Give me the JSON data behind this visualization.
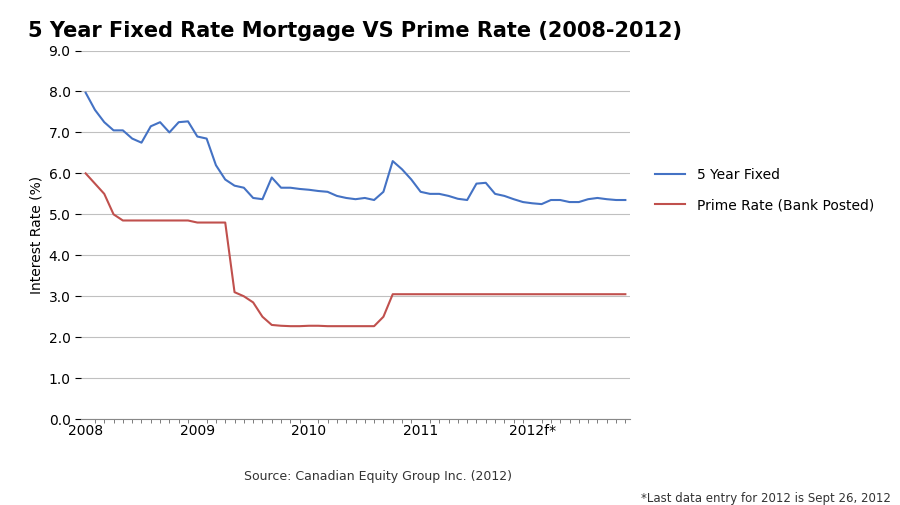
{
  "title": "5 Year Fixed Rate Mortgage VS Prime Rate (2008-2012)",
  "ylabel": "Interest Rate (%)",
  "source_text": "Source: Canadian Equity Group Inc. (2012)",
  "footnote_text": "*Last data entry for 2012 is Sept 26, 2012",
  "ylim": [
    0.0,
    9.0
  ],
  "yticks": [
    0.0,
    1.0,
    2.0,
    3.0,
    4.0,
    5.0,
    6.0,
    7.0,
    8.0,
    9.0
  ],
  "fixed_rate_x": [
    0,
    1,
    2,
    3,
    4,
    5,
    6,
    7,
    8,
    9,
    10,
    11,
    12,
    13,
    14,
    15,
    16,
    17,
    18,
    19,
    20,
    21,
    22,
    23,
    24,
    25,
    26,
    27,
    28,
    29,
    30,
    31,
    32,
    33,
    34,
    35,
    36,
    37,
    38,
    39,
    40,
    41,
    42,
    43,
    44,
    45,
    46,
    47,
    48,
    49,
    50,
    51,
    52,
    53,
    54,
    55,
    56,
    57,
    58
  ],
  "fixed_rate_y": [
    7.97,
    7.55,
    7.25,
    7.05,
    7.05,
    6.85,
    6.75,
    7.15,
    7.25,
    7.0,
    7.25,
    7.27,
    6.9,
    6.85,
    6.2,
    5.85,
    5.7,
    5.65,
    5.4,
    5.37,
    5.9,
    5.65,
    5.65,
    5.62,
    5.6,
    5.57,
    5.55,
    5.45,
    5.4,
    5.37,
    5.4,
    5.35,
    5.55,
    6.3,
    6.1,
    5.85,
    5.55,
    5.5,
    5.5,
    5.45,
    5.38,
    5.35,
    5.75,
    5.77,
    5.5,
    5.45,
    5.37,
    5.3,
    5.27,
    5.25,
    5.35,
    5.35,
    5.3,
    5.3,
    5.37,
    5.4,
    5.37,
    5.35,
    5.35
  ],
  "prime_rate_x": [
    0,
    1,
    2,
    3,
    4,
    5,
    6,
    7,
    8,
    9,
    10,
    11,
    12,
    13,
    14,
    15,
    16,
    17,
    18,
    19,
    20,
    21,
    22,
    23,
    24,
    25,
    26,
    27,
    28,
    29,
    30,
    31,
    32,
    33,
    34,
    35,
    36,
    37,
    38,
    39,
    40,
    41,
    42,
    43,
    44,
    45,
    46,
    47,
    48,
    49,
    50,
    51,
    52,
    53,
    54,
    55,
    56,
    57,
    58
  ],
  "prime_rate_y": [
    6.0,
    5.75,
    5.5,
    5.0,
    4.85,
    4.85,
    4.85,
    4.85,
    4.85,
    4.85,
    4.85,
    4.85,
    4.8,
    4.8,
    4.8,
    4.8,
    3.1,
    3.0,
    2.85,
    2.5,
    2.3,
    2.28,
    2.27,
    2.27,
    2.28,
    2.28,
    2.27,
    2.27,
    2.27,
    2.27,
    2.27,
    2.27,
    2.5,
    3.05,
    3.05,
    3.05,
    3.05,
    3.05,
    3.05,
    3.05,
    3.05,
    3.05,
    3.05,
    3.05,
    3.05,
    3.05,
    3.05,
    3.05,
    3.05,
    3.05,
    3.05,
    3.05,
    3.05,
    3.05,
    3.05,
    3.05,
    3.05,
    3.05,
    3.05
  ],
  "fixed_color": "#4472C4",
  "prime_color": "#C0504D",
  "grid_color": "#C0C0C0",
  "bg_color": "#FFFFFF",
  "title_fontsize": 15,
  "label_fontsize": 10,
  "tick_fontsize": 10,
  "legend_fontsize": 10,
  "fixed_label": "5 Year Fixed",
  "prime_label": "Prime Rate (Bank Posted)"
}
